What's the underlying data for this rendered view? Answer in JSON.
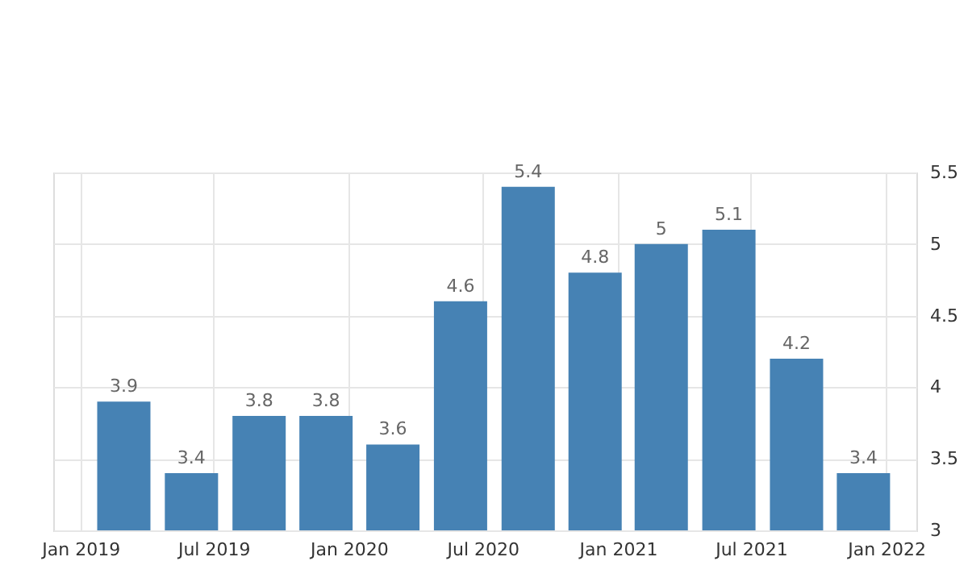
{
  "chart_data": {
    "type": "bar",
    "x": [
      "2019-03-01",
      "2019-06-01",
      "2019-09-01",
      "2019-12-01",
      "2020-03-01",
      "2020-06-01",
      "2020-09-01",
      "2020-12-01",
      "2021-03-01",
      "2021-06-01",
      "2021-09-01",
      "2021-12-01"
    ],
    "values": [
      3.9,
      3.4,
      3.8,
      3.8,
      3.6,
      4.6,
      5.4,
      4.8,
      5,
      5.1,
      4.2,
      3.4
    ],
    "color": "#4682b4",
    "xlim": [
      "2018-11-25",
      "2022-02-11"
    ],
    "xticks": [
      {
        "value": "2019-01-01",
        "label": "Jan 2019"
      },
      {
        "value": "2019-07-01",
        "label": "Jul 2019"
      },
      {
        "value": "2020-01-01",
        "label": "Jan 2020"
      },
      {
        "value": "2020-07-01",
        "label": "Jul 2020"
      },
      {
        "value": "2021-01-01",
        "label": "Jan 2021"
      },
      {
        "value": "2021-07-01",
        "label": "Jul 2021"
      },
      {
        "value": "2022-01-01",
        "label": "Jan 2022"
      }
    ],
    "ylim": [
      3,
      5.5
    ],
    "yticks": [
      3,
      3.5,
      4,
      4.5,
      5,
      5.5
    ],
    "grid": true,
    "data_labels": true
  }
}
